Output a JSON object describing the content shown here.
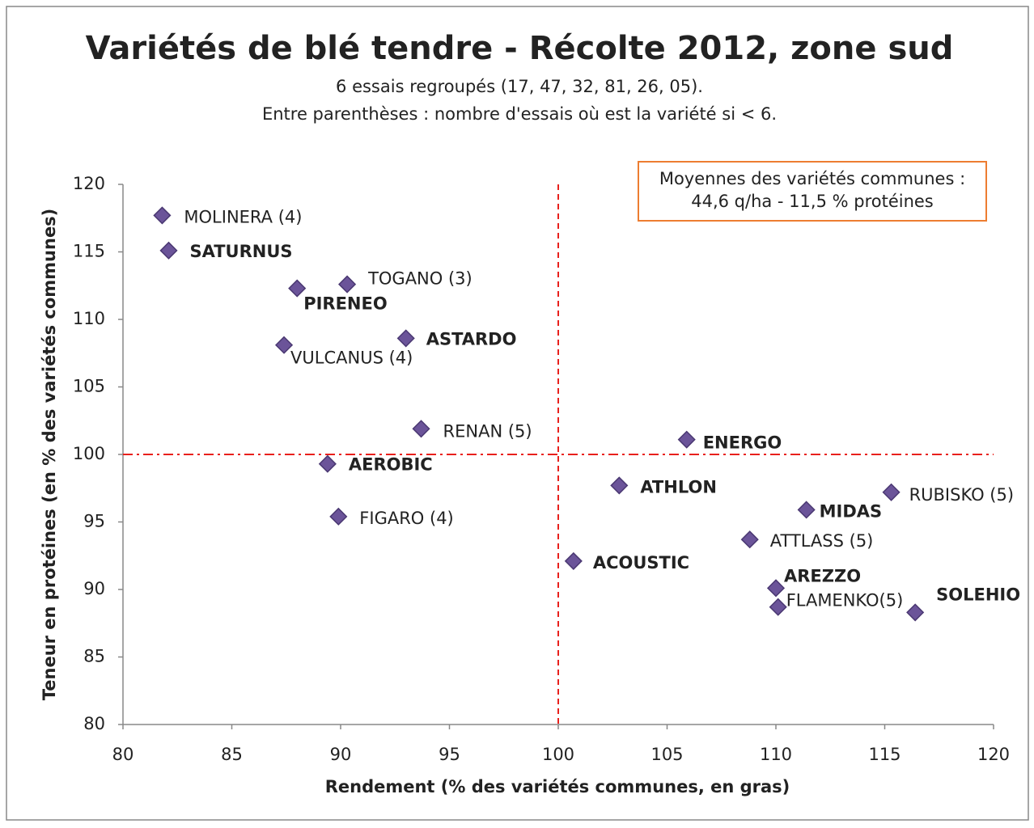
{
  "chart_data": {
    "type": "scatter",
    "title": "Variétés de blé tendre - Récolte 2012, zone sud",
    "subtitle": [
      "6 essais regroupés (17, 47, 32, 81, 26, 05).",
      "Entre parenthèses  : nombre d'essais où est la variété si < 6."
    ],
    "xlabel": "Rendement (% des variétés communes, en gras)",
    "ylabel": "Teneur en protéines (en % des variétés communes)",
    "xlim": [
      80,
      120
    ],
    "xticks": [
      80,
      85,
      90,
      95,
      100,
      105,
      110,
      115,
      120
    ],
    "ylim": [
      80,
      120
    ],
    "yticks": [
      80,
      85,
      90,
      95,
      100,
      105,
      110,
      115,
      120
    ],
    "labels": [
      "MOLINERA (4)",
      "SATURNUS",
      "PIRENEO",
      "TOGANO (3)",
      "VULCANUS (4)",
      "ASTARDO",
      "RENAN (5)",
      "AEROBIC",
      "FIGARO (4)",
      "ENERGO",
      "ATHLON",
      "ACOUSTIC",
      "RUBISKO (5)",
      "MIDAS",
      "ATTLASS (5)",
      "AREZZO",
      "FLAMENKO(5)",
      "SOLEHIO"
    ],
    "x": [
      81.8,
      82.1,
      88.0,
      90.3,
      87.4,
      93.0,
      93.7,
      89.4,
      89.9,
      105.9,
      102.8,
      100.7,
      115.3,
      111.4,
      108.8,
      110.0,
      110.1,
      116.4
    ],
    "y": [
      117.7,
      115.1,
      112.3,
      112.6,
      108.1,
      108.6,
      101.9,
      99.3,
      95.4,
      101.1,
      97.7,
      92.1,
      97.2,
      95.9,
      93.7,
      90.1,
      88.7,
      88.3
    ],
    "bold": [
      false,
      true,
      true,
      false,
      false,
      true,
      false,
      true,
      false,
      true,
      true,
      true,
      false,
      true,
      false,
      true,
      false,
      true
    ],
    "color": "#6b5499",
    "reference_lines": {
      "x": 100,
      "y": 100,
      "color": "#e8201c"
    },
    "annotation": [
      "Moyennes des variétés communes :",
      "44,6 q/ha  -  11,5 % protéines"
    ]
  }
}
